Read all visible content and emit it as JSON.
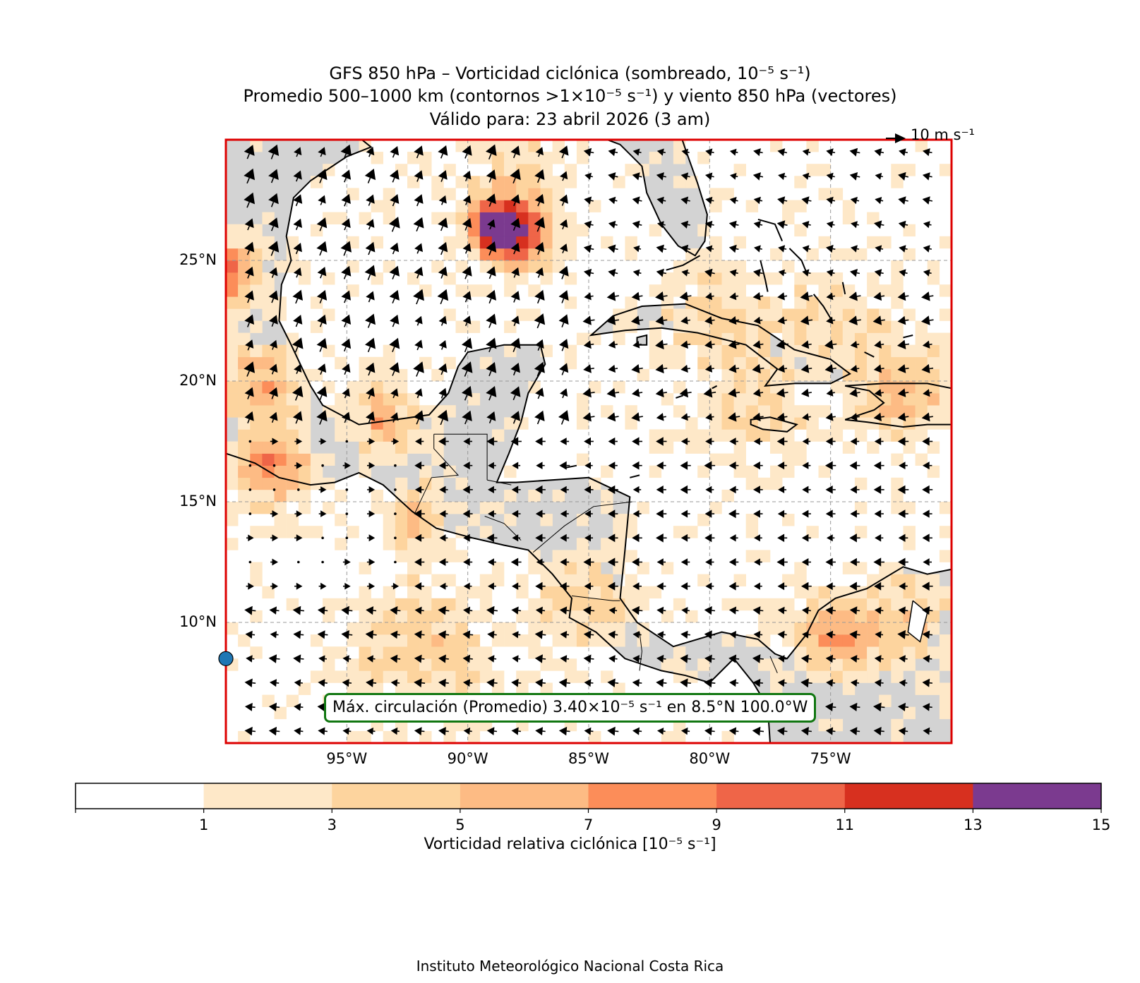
{
  "title": {
    "line1": "GFS 850 hPa – Vorticidad ciclónica (sombreado, 10⁻⁵ s⁻¹)",
    "line2": "Promedio 500–1000 km (contornos >1×10⁻⁵ s⁻¹) y viento 850 hPa (vectores)",
    "line3": "Válido para: 23 abril 2026 (3 am)"
  },
  "map": {
    "extent_lon": [
      -100,
      -70
    ],
    "extent_lat": [
      5,
      30
    ],
    "lat_ticks": [
      {
        "value": 25,
        "label": "25°N"
      },
      {
        "value": 20,
        "label": "20°N"
      },
      {
        "value": 15,
        "label": "15°N"
      },
      {
        "value": 10,
        "label": "10°N"
      }
    ],
    "lon_ticks": [
      {
        "value": -95,
        "label": "95°W"
      },
      {
        "value": -90,
        "label": "90°W"
      },
      {
        "value": -85,
        "label": "85°W"
      },
      {
        "value": -80,
        "label": "80°W"
      },
      {
        "value": -75,
        "label": "75°W"
      }
    ],
    "gridlines": true,
    "land_color": "#d3d3d3",
    "border_color": "#dd0000",
    "max_marker": {
      "lat": 8.5,
      "lon": -100.0,
      "color": "#1f77b4"
    }
  },
  "wind_reference": {
    "label": "10 m s⁻¹"
  },
  "max_circulation": {
    "text": "Máx. circulación (Promedio) 3.40×10⁻⁵ s⁻¹ en 8.5°N 100.0°W",
    "value": 3.4,
    "lat": 8.5,
    "lon": -100.0
  },
  "colorbar": {
    "title": "Vorticidad relativa ciclónica [10⁻⁵ s⁻¹]",
    "bounds": [
      1,
      3,
      5,
      7,
      9,
      11,
      13,
      15
    ],
    "tick_labels": [
      "1",
      "3",
      "5",
      "7",
      "9",
      "11",
      "13",
      "15"
    ],
    "colors": [
      "#ffffff",
      "#fee8c8",
      "#fdd49e",
      "#fdbb84",
      "#fc8d59",
      "#ef6548",
      "#d7301f",
      "#7b3a8f"
    ]
  },
  "credit": "Instituto Meteorológico Nacional Costa Rica"
}
